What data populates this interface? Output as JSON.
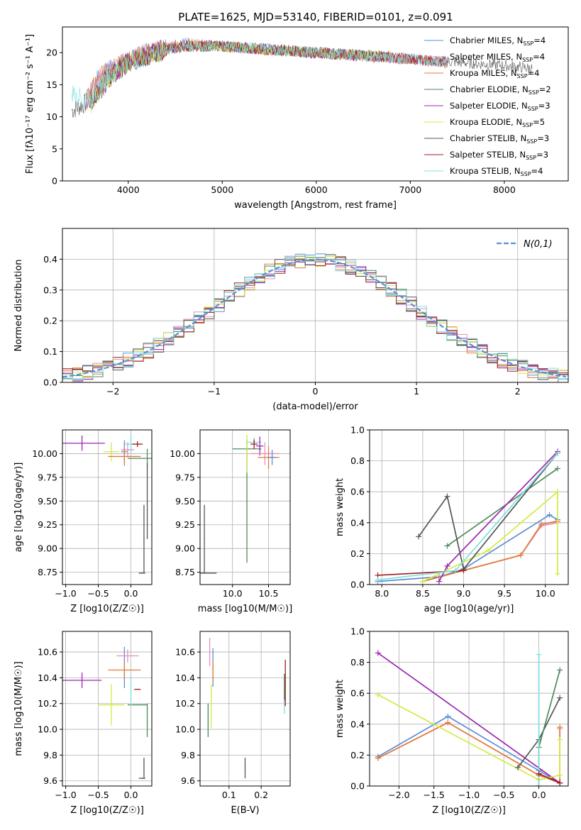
{
  "figure": {
    "title": "PLATE=1625, MJD=53140, FIBERID=0101, z=0.091"
  },
  "chart_data": [
    {
      "id": "spectrum",
      "type": "line",
      "xlabel": "wavelength [Angstrom, rest frame]",
      "ylabel": "Flux [fλ10⁻¹⁷ erg cm⁻² s⁻¹ A⁻¹]",
      "xlim": [
        3300,
        8680
      ],
      "ylim": [
        0,
        24
      ],
      "xticks": [
        4000,
        5000,
        6000,
        7000,
        8000
      ],
      "yticks": [
        0,
        5,
        10,
        15,
        20
      ],
      "grid": false,
      "legend_position": "top-right",
      "series": [
        {
          "name": "Chabrier MILES, N_SSP=4",
          "color": "#5b8fd6",
          "x": [
            3550,
            3700,
            3900,
            4100,
            4300,
            4600,
            5000,
            5500,
            6000,
            6500,
            7000,
            7400
          ],
          "y": [
            12.5,
            16.5,
            18,
            19.5,
            20.5,
            21.5,
            21,
            20.5,
            20,
            19.5,
            19,
            18.5
          ]
        },
        {
          "name": "Salpeter MILES, N_SSP=4",
          "color": "#e58fbd",
          "x": [
            3550,
            3700,
            3900,
            4100,
            4300,
            4600,
            5000,
            5500,
            6000,
            6500,
            7000,
            7400
          ],
          "y": [
            12.4,
            16.4,
            18,
            19.4,
            20.4,
            21.4,
            21,
            20.4,
            20,
            19.4,
            19,
            18.4
          ]
        },
        {
          "name": "Kroupa MILES, N_SSP=4",
          "color": "#e07b39",
          "x": [
            3550,
            3700,
            3900,
            4100,
            4300,
            4600,
            5000,
            5500,
            6000,
            6500,
            7000,
            7400
          ],
          "y": [
            12.4,
            16.4,
            18,
            19.4,
            20.4,
            21.4,
            21,
            20.4,
            20,
            19.4,
            19,
            18.4
          ]
        },
        {
          "name": "Chabrier ELODIE, N_SSP=2",
          "color": "#4f8a5b",
          "x": [
            3600,
            3800,
            4000,
            4300,
            4600,
            5000,
            5500,
            6000,
            6500,
            6800
          ],
          "y": [
            12,
            16,
            18.5,
            20,
            21,
            21,
            20.5,
            20,
            19.6,
            19.5
          ]
        },
        {
          "name": "Salpeter ELODIE, N_SSP=3",
          "color": "#9c27b0",
          "x": [
            3600,
            3800,
            4000,
            4300,
            4600,
            5000,
            5500,
            6000,
            6500,
            6800
          ],
          "y": [
            12,
            16,
            18.5,
            20,
            21,
            21,
            20.5,
            20,
            19.6,
            19.5
          ]
        },
        {
          "name": "Kroupa ELODIE, N_SSP=5",
          "color": "#d4ea42",
          "x": [
            3600,
            3800,
            4000,
            4300,
            4600,
            5000,
            5500,
            6000,
            6500,
            6800
          ],
          "y": [
            12,
            16,
            18.5,
            20,
            21,
            21,
            20.5,
            20,
            19.6,
            19.5
          ]
        },
        {
          "name": "Chabrier STELIB, N_SSP=3",
          "color": "#555555",
          "x": [
            3400,
            3600,
            3800,
            4000,
            4300,
            4600,
            5000,
            5500,
            6000,
            6500,
            7000,
            7500,
            8000,
            8300
          ],
          "y": [
            11,
            12.5,
            16.5,
            18.5,
            20,
            21,
            21,
            20.5,
            20,
            19.5,
            19,
            18.5,
            18,
            17.5
          ]
        },
        {
          "name": "Salpeter STELIB, N_SSP=3",
          "color": "#a01c1c",
          "x": [
            3600,
            3800,
            4000,
            4300,
            4600,
            5000,
            5500,
            6000,
            6500,
            7000,
            7400
          ],
          "y": [
            12.5,
            16.5,
            18.5,
            20,
            21,
            21,
            20.5,
            20,
            19.5,
            19,
            18.5
          ]
        },
        {
          "name": "Kroupa STELIB, N_SSP=4",
          "color": "#7fdfe0",
          "x": [
            3400,
            3600,
            3800,
            4000,
            4300,
            4600,
            5000,
            5500,
            6000,
            6500,
            7000,
            7400
          ],
          "y": [
            13.5,
            12.5,
            16.5,
            18.5,
            20,
            21,
            21,
            20.5,
            20,
            19.5,
            19,
            18.5
          ]
        }
      ],
      "legend_labels": [
        {
          "pre": "Chabrier MILES, N",
          "sub": "SSP",
          "post": "=4"
        },
        {
          "pre": "Salpeter MILES, N",
          "sub": "SSP",
          "post": "=4"
        },
        {
          "pre": "Kroupa MILES, N",
          "sub": "SSP",
          "post": "=4"
        },
        {
          "pre": "Chabrier ELODIE, N",
          "sub": "SSP",
          "post": "=2"
        },
        {
          "pre": "Salpeter ELODIE, N",
          "sub": "SSP",
          "post": "=3"
        },
        {
          "pre": "Kroupa ELODIE, N",
          "sub": "SSP",
          "post": "=5"
        },
        {
          "pre": "Chabrier STELIB, N",
          "sub": "SSP",
          "post": "=3"
        },
        {
          "pre": "Salpeter STELIB, N",
          "sub": "SSP",
          "post": "=3"
        },
        {
          "pre": "Kroupa STELIB, N",
          "sub": "SSP",
          "post": "=4"
        }
      ]
    },
    {
      "id": "residuals",
      "type": "area",
      "xlabel": "(data-model)/error",
      "ylabel": "Normed distribution",
      "xlim": [
        -2.5,
        2.5
      ],
      "ylim": [
        0,
        0.5
      ],
      "xticks": [
        -2,
        -1,
        0,
        1,
        2
      ],
      "yticks": [
        0.0,
        0.1,
        0.2,
        0.3,
        0.4
      ],
      "grid": true,
      "legend_position": "top-right",
      "reference_curve": {
        "name": "N(0,1)",
        "color": "#5b8fd6",
        "mean": 0,
        "sigma": 1
      }
    },
    {
      "id": "age_vs_Z",
      "type": "scatter",
      "xlabel": "Z [log10(Z/Z☉)]",
      "ylabel": "age [log10(age/yr)]",
      "xlim": [
        -1.05,
        0.32
      ],
      "ylim": [
        8.62,
        10.25
      ],
      "xticks": [
        -1.0,
        -0.5,
        0.0
      ],
      "yticks": [
        8.75,
        9.0,
        9.25,
        9.5,
        9.75,
        10.0
      ],
      "grid": true,
      "points": [
        {
          "color": "#9c27b0",
          "x": -0.75,
          "y": 10.11,
          "xerr": 0.35,
          "yerr": 0.08
        },
        {
          "color": "#d4ea42",
          "x": -0.3,
          "y": 10.02,
          "xerr": 0.12,
          "yerr": 0.1
        },
        {
          "color": "#5b8fd6",
          "x": -0.1,
          "y": 10.02,
          "xerr": 0.05,
          "yerr": 0.12
        },
        {
          "color": "#e58fbd",
          "x": -0.05,
          "y": 10.04,
          "xerr": 0.1,
          "yerr": 0.08
        },
        {
          "color": "#e07b39",
          "x": -0.1,
          "y": 9.97,
          "xerr": 0.25,
          "yerr": 0.1
        },
        {
          "color": "#4f8a5b",
          "x": 0.25,
          "y": 9.95,
          "xerr": 0.3,
          "yerr": 0.1
        },
        {
          "color": "#7fdfe0",
          "x": 0.0,
          "y": 10.1,
          "xerr": 0.12,
          "yerr": 0.1
        },
        {
          "color": "#a01c1c",
          "x": 0.1,
          "y": 10.1,
          "xerr": 0.08,
          "yerr": 0.03
        },
        {
          "color": "#555555",
          "x": 0.17,
          "y": 8.74,
          "xerr": 0.05,
          "yerr": 0.0
        },
        {
          "color": "#555555",
          "x": 0.2,
          "y": 9.1,
          "xerr": 0.0,
          "yerr": 0.36
        },
        {
          "color": "#555555",
          "x": 0.25,
          "y": 9.5,
          "xerr": 0.0,
          "yerr": 0.4
        }
      ]
    },
    {
      "id": "age_vs_mass",
      "type": "scatter",
      "xlabel": "mass [log10(M/M☉)]",
      "xlim": [
        9.55,
        10.8
      ],
      "ylim": [
        8.62,
        10.25
      ],
      "xticks": [
        10.0,
        10.5
      ],
      "yticks": [
        8.75,
        9.0,
        9.25,
        9.5,
        9.75,
        10.0
      ],
      "grid": true,
      "points": [
        {
          "color": "#555555",
          "x": 9.6,
          "y": 8.74,
          "xerr": 0.18,
          "yerr": 0.0
        },
        {
          "color": "#555555",
          "x": 9.61,
          "y": 9.1,
          "xerr": 0.0,
          "yerr": 0.36
        },
        {
          "color": "#4f8a5b",
          "x": 10.2,
          "y": 10.05,
          "xerr": 0.2,
          "yerr": 0.0
        },
        {
          "color": "#4f8a5b",
          "x": 10.2,
          "y": 9.5,
          "xerr": 0.0,
          "yerr": 0.65
        },
        {
          "color": "#d4ea42",
          "x": 10.2,
          "y": 10.0,
          "xerr": 0.0,
          "yerr": 0.2
        },
        {
          "color": "#7fdfe0",
          "x": 10.3,
          "y": 10.12,
          "xerr": 0.1,
          "yerr": 0.05
        },
        {
          "color": "#9c27b0",
          "x": 10.38,
          "y": 10.08,
          "xerr": 0.05,
          "yerr": 0.1
        },
        {
          "color": "#a01c1c",
          "x": 10.3,
          "y": 10.1,
          "xerr": 0.05,
          "yerr": 0.05
        },
        {
          "color": "#e58fbd",
          "x": 10.45,
          "y": 10.0,
          "xerr": 0.2,
          "yerr": 0.12
        },
        {
          "color": "#e07b39",
          "x": 10.5,
          "y": 9.96,
          "xerr": 0.15,
          "yerr": 0.12
        },
        {
          "color": "#5b8fd6",
          "x": 10.55,
          "y": 9.96,
          "xerr": 0.05,
          "yerr": 0.08
        }
      ]
    },
    {
      "id": "mass_weight_vs_age",
      "type": "line",
      "xlabel": "age [log10(age/yr)]",
      "ylabel": "mass weight",
      "xlim": [
        7.85,
        10.28
      ],
      "ylim": [
        0,
        1
      ],
      "xticks": [
        8.0,
        8.5,
        9.0,
        9.5,
        10.0
      ],
      "yticks": [
        0.0,
        0.2,
        0.4,
        0.6,
        0.8,
        1.0
      ],
      "grid": true,
      "series": [
        {
          "color": "#5b8fd6",
          "x": [
            7.95,
            8.7,
            9.0,
            10.05,
            10.15
          ],
          "y": [
            0.02,
            0.05,
            0.1,
            0.45,
            0.42
          ]
        },
        {
          "color": "#e58fbd",
          "x": [
            8.5,
            9.7,
            9.95,
            10.15
          ],
          "y": [
            0.02,
            0.19,
            0.38,
            0.4
          ]
        },
        {
          "color": "#e07b39",
          "x": [
            8.5,
            9.7,
            9.95,
            10.15
          ],
          "y": [
            0.02,
            0.19,
            0.39,
            0.41
          ]
        },
        {
          "color": "#4f8a5b",
          "x": [
            8.8,
            10.15
          ],
          "y": [
            0.25,
            0.75
          ]
        },
        {
          "color": "#9c27b0",
          "x": [
            8.7,
            8.8,
            10.15
          ],
          "y": [
            0.02,
            0.12,
            0.86
          ]
        },
        {
          "color": "#d4ea42",
          "x": [
            8.5,
            9.3,
            10.15,
            10.15
          ],
          "y": [
            0.02,
            0.22,
            0.6,
            0.07
          ]
        },
        {
          "color": "#555555",
          "x": [
            8.45,
            8.8,
            9.0,
            10.15
          ],
          "y": [
            0.31,
            0.57,
            0.1,
            0.85
          ]
        },
        {
          "color": "#a01c1c",
          "x": [
            7.95,
            9.0
          ],
          "y": [
            0.06,
            0.09
          ]
        },
        {
          "color": "#7fdfe0",
          "x": [
            7.95,
            8.9,
            10.15
          ],
          "y": [
            0.03,
            0.09,
            0.85
          ]
        }
      ]
    },
    {
      "id": "mass_vs_Z",
      "type": "scatter",
      "xlabel": "Z [log10(Z/Z☉)]",
      "ylabel": "mass [log10(M/M☉)]",
      "xlim": [
        -1.05,
        0.32
      ],
      "ylim": [
        9.56,
        10.76
      ],
      "xticks": [
        -1.0,
        -0.5,
        0.0
      ],
      "yticks": [
        9.6,
        9.8,
        10.0,
        10.2,
        10.4,
        10.6
      ],
      "grid": true,
      "points": [
        {
          "color": "#9c27b0",
          "x": -0.75,
          "y": 10.38,
          "xerr": 0.3,
          "yerr": 0.06
        },
        {
          "color": "#d4ea42",
          "x": -0.3,
          "y": 10.19,
          "xerr": 0.2,
          "yerr": 0.16
        },
        {
          "color": "#4f8a5b",
          "x": 0.1,
          "y": 10.19,
          "xerr": 0.15,
          "yerr": 0.0
        },
        {
          "color": "#4f8a5b",
          "x": 0.25,
          "y": 10.07,
          "xerr": 0.0,
          "yerr": 0.13
        },
        {
          "color": "#5b8fd6",
          "x": -0.1,
          "y": 10.48,
          "xerr": 0.0,
          "yerr": 0.16
        },
        {
          "color": "#e58fbd",
          "x": -0.05,
          "y": 10.57,
          "xerr": 0.17,
          "yerr": 0.05
        },
        {
          "color": "#e07b39",
          "x": -0.1,
          "y": 10.46,
          "xerr": 0.25,
          "yerr": 0.06
        },
        {
          "color": "#7fdfe0",
          "x": 0.0,
          "y": 10.3,
          "xerr": 0.0,
          "yerr": 0.12
        },
        {
          "color": "#a01c1c",
          "x": 0.1,
          "y": 10.31,
          "xerr": 0.05,
          "yerr": 0.0
        },
        {
          "color": "#555555",
          "x": 0.17,
          "y": 9.62,
          "xerr": 0.05,
          "yerr": 0.0
        },
        {
          "color": "#555555",
          "x": 0.2,
          "y": 9.7,
          "xerr": 0.0,
          "yerr": 0.08
        }
      ]
    },
    {
      "id": "mass_vs_ebv",
      "type": "scatter",
      "xlabel": "E(B-V)",
      "xlim": [
        0.01,
        0.29
      ],
      "ylim": [
        9.56,
        10.76
      ],
      "xticks": [
        0.1,
        0.2
      ],
      "yticks": [
        9.6,
        9.8,
        10.0,
        10.2,
        10.4,
        10.6
      ],
      "grid": true,
      "points": [
        {
          "color": "#4f8a5b",
          "x": 0.035,
          "y": 10.07,
          "xerr": 0.0,
          "yerr": 0.13
        },
        {
          "color": "#d4ea42",
          "x": 0.045,
          "y": 10.18,
          "xerr": 0.0,
          "yerr": 0.17
        },
        {
          "color": "#e58fbd",
          "x": 0.04,
          "y": 10.6,
          "xerr": 0.0,
          "yerr": 0.11
        },
        {
          "color": "#5b8fd6",
          "x": 0.05,
          "y": 10.48,
          "xerr": 0.0,
          "yerr": 0.15
        },
        {
          "color": "#e07b39",
          "x": 0.05,
          "y": 10.45,
          "xerr": 0.0,
          "yerr": 0.08
        },
        {
          "color": "#555555",
          "x": 0.15,
          "y": 9.7,
          "xerr": 0.0,
          "yerr": 0.08
        },
        {
          "color": "#7fdfe0",
          "x": 0.272,
          "y": 10.2,
          "xerr": 0.0,
          "yerr": 0.08
        },
        {
          "color": "#a01c1c",
          "x": 0.275,
          "y": 10.36,
          "xerr": 0.0,
          "yerr": 0.18
        },
        {
          "color": "#4f8a5b",
          "x": 0.272,
          "y": 10.33,
          "xerr": 0.0,
          "yerr": 0.1
        }
      ]
    },
    {
      "id": "mass_weight_vs_Z",
      "type": "line",
      "xlabel": "Z [log10(Z/Z☉)]",
      "ylabel": "mass weight",
      "xlim": [
        -2.42,
        0.42
      ],
      "ylim": [
        0,
        1
      ],
      "xticks": [
        -2.0,
        -1.5,
        -1.0,
        -0.5,
        0.0
      ],
      "yticks": [
        0.0,
        0.2,
        0.4,
        0.6,
        0.8,
        1.0
      ],
      "grid": true,
      "series": [
        {
          "color": "#5b8fd6",
          "x": [
            -2.3,
            -1.3,
            0.0,
            0.3
          ],
          "y": [
            0.19,
            0.45,
            0.1,
            0.02
          ]
        },
        {
          "color": "#e58fbd",
          "x": [
            -2.3,
            -1.3,
            0.0,
            0.3,
            0.3
          ],
          "y": [
            0.18,
            0.41,
            0.07,
            0.02,
            0.37
          ]
        },
        {
          "color": "#e07b39",
          "x": [
            -2.3,
            -1.3,
            0.0,
            0.3,
            0.3
          ],
          "y": [
            0.18,
            0.41,
            0.07,
            0.02,
            0.38
          ]
        },
        {
          "color": "#9c27b0",
          "x": [
            -2.3,
            0.3
          ],
          "y": [
            0.86,
            0.02
          ]
        },
        {
          "color": "#d4ea42",
          "x": [
            -2.3,
            0.0,
            0.3,
            0.3
          ],
          "y": [
            0.59,
            0.04,
            0.07,
            0.3
          ]
        },
        {
          "color": "#555555",
          "x": [
            -0.3,
            0.0,
            0.3
          ],
          "y": [
            0.12,
            0.3,
            0.57
          ]
        },
        {
          "color": "#4f8a5b",
          "x": [
            0.0,
            0.0,
            0.3
          ],
          "y": [
            0.0,
            0.25,
            0.75
          ]
        },
        {
          "color": "#7fdfe0",
          "x": [
            0.0,
            0.0
          ],
          "y": [
            0.0,
            0.85
          ]
        },
        {
          "color": "#a01c1c",
          "x": [
            0.0,
            0.3
          ],
          "y": [
            0.08,
            0.02
          ]
        }
      ]
    }
  ]
}
